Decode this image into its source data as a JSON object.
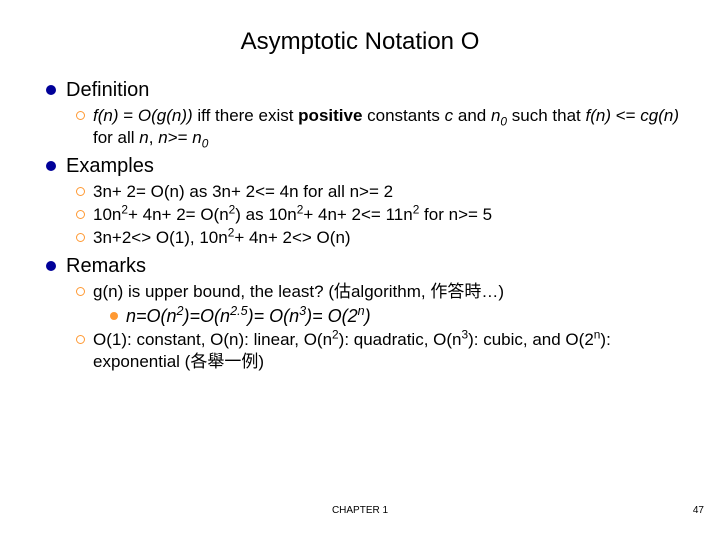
{
  "title": "Asymptotic Notation O",
  "sections": {
    "definition": {
      "heading": "Definition",
      "item_html": "<i>f(n)</i> = <i>O(g(n))</i> iff there exist <b>positive</b> constants <i>c</i> and <i>n<span class=\"sub\">0</span></i> such that <i>f(n)</i> &lt;= <i>cg(n)</i> for all <i>n</i>, <i>n</i>&gt;= <i>n<span class=\"sub\">0</span></i>"
    },
    "examples": {
      "heading": "Examples",
      "items_html": [
        "3n+ 2= O(n) as 3n+ 2&lt;= 4n for all n&gt;= 2",
        "10n<span class=\"sup\">2</span>+ 4n+ 2= O(n<span class=\"sup\">2</span>) as 10n<span class=\"sup\">2</span>+ 4n+ 2&lt;= 11n<span class=\"sup\">2</span> for n&gt;= 5",
        "3n+2&lt;&gt; O(1), 10n<span class=\"sup\">2</span>+ 4n+ 2&lt;&gt; O(n)"
      ]
    },
    "remarks": {
      "heading": "Remarks",
      "item1_html": "g(n) is upper bound, the least? (估algorithm, 作答時…)",
      "sub_html": "n=O(n<span class=\"sup\">2</span>)=O(n<span class=\"sup\">2.5</span>)= O(n<span class=\"sup\">3</span>)= O(2<span class=\"sup\">n</span>)",
      "item2_html": "O(1): constant, O(n): linear, O(n<span class=\"sup\">2</span>): quadratic, O(n<span class=\"sup\">3</span>): cubic, and O(2<span class=\"sup\">n</span>): exponential (各舉一例)"
    }
  },
  "footer": {
    "chapter": "CHAPTER 1",
    "page": "47"
  }
}
